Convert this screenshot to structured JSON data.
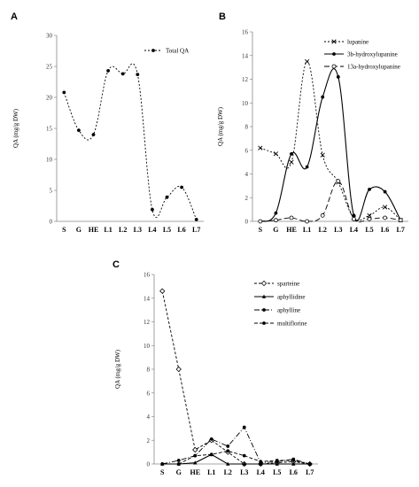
{
  "chart_data": [
    {
      "panel": "A",
      "type": "line",
      "categories": [
        "S",
        "G",
        "HE",
        "L1",
        "L2",
        "L3",
        "L4",
        "L5",
        "L6",
        "L7"
      ],
      "ylabel": "QA (mg/g DW)",
      "ylim": [
        0,
        30
      ],
      "yticks": [
        0,
        5,
        10,
        15,
        20,
        25,
        30
      ],
      "grid": false,
      "legend": "top-right",
      "series": [
        {
          "name": "Total QA",
          "values": [
            20.8,
            14.7,
            14.0,
            24.3,
            23.8,
            23.7,
            1.9,
            3.9,
            5.5,
            0.3
          ],
          "color": "#000000",
          "marker": "filled-circle",
          "dash": "2,2"
        }
      ]
    },
    {
      "panel": "B",
      "type": "line",
      "categories": [
        "S",
        "G",
        "HE",
        "L1",
        "L2",
        "L3",
        "L4",
        "L5",
        "L6",
        "L7"
      ],
      "ylabel": "QA (mg/g DW)",
      "ylim": [
        0,
        16
      ],
      "yticks": [
        0,
        2,
        4,
        6,
        8,
        10,
        12,
        14,
        16
      ],
      "grid": false,
      "legend": "top-right",
      "series": [
        {
          "name": "lupanine",
          "values": [
            6.2,
            5.7,
            5.0,
            13.5,
            5.6,
            3.3,
            0.3,
            0.5,
            1.2,
            0.1
          ],
          "color": "#000000",
          "marker": "x",
          "dash": "2,2"
        },
        {
          "name": "3b-hydroxylupanine",
          "values": [
            0.0,
            0.7,
            5.7,
            4.6,
            10.5,
            12.2,
            0.5,
            2.7,
            2.5,
            0.1
          ],
          "color": "#000000",
          "marker": "filled-circle",
          "dash": ""
        },
        {
          "name": "13a-hydroxylupanine",
          "values": [
            0.0,
            0.1,
            0.3,
            0.0,
            0.5,
            3.4,
            0.2,
            0.2,
            0.3,
            0.1
          ],
          "color": "#000000",
          "marker": "open-circle",
          "dash": "6,3"
        }
      ]
    },
    {
      "panel": "C",
      "type": "line",
      "categories": [
        "S",
        "G",
        "HE",
        "L1",
        "L2",
        "L3",
        "L4",
        "L5",
        "L6",
        "L7"
      ],
      "ylabel": "QA (mg/g DW)",
      "ylim": [
        0,
        16
      ],
      "yticks": [
        0,
        2,
        4,
        6,
        8,
        10,
        12,
        14,
        16
      ],
      "grid": false,
      "legend": "top-right",
      "series": [
        {
          "name": "sparteine",
          "values": [
            14.6,
            8.0,
            1.2,
            2.0,
            1.0,
            0.0,
            0.0,
            0.1,
            0.2,
            0.0
          ],
          "color": "#000000",
          "marker": "open-diamond",
          "dash": "3,2"
        },
        {
          "name": "aphyllidine",
          "values": [
            0.0,
            0.0,
            0.1,
            0.8,
            0.0,
            0.0,
            0.0,
            0.0,
            0.0,
            0.0
          ],
          "color": "#000000",
          "marker": "triangle",
          "dash": ""
        },
        {
          "name": "aphylline",
          "values": [
            0.0,
            0.3,
            0.7,
            2.1,
            1.5,
            3.1,
            0.1,
            0.2,
            0.4,
            0.0
          ],
          "color": "#000000",
          "marker": "filled-circle",
          "dash": "6,2,1,2"
        },
        {
          "name": "multiflorine",
          "values": [
            0.0,
            0.0,
            0.7,
            0.8,
            1.1,
            0.7,
            0.2,
            0.3,
            0.3,
            0.0
          ],
          "color": "#000000",
          "marker": "filled-circle",
          "dash": "4,2"
        }
      ]
    }
  ]
}
